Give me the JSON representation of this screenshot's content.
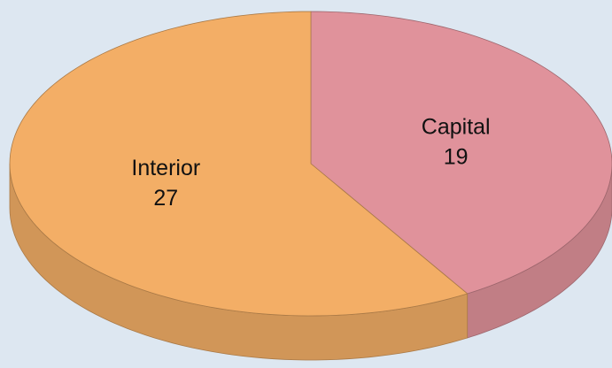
{
  "chart_data": {
    "type": "pie",
    "categories": [
      "Capital",
      "Interior"
    ],
    "values": [
      19,
      27
    ],
    "colors": [
      "#e0929b",
      "#f3ae66"
    ]
  }
}
